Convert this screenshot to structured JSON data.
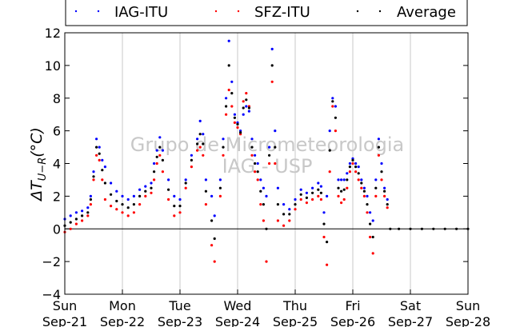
{
  "chart_data": {
    "type": "scatter",
    "ylabel": "ΔT_{U-R}(°C)",
    "ylim": [
      -4,
      12
    ],
    "yticks": [
      -4,
      -2,
      0,
      2,
      4,
      6,
      8,
      10,
      12
    ],
    "xlim": [
      "2014-09-21",
      "2014-09-28"
    ],
    "xticks": [
      {
        "day": "Sun",
        "date": "Sep-21"
      },
      {
        "day": "Mon",
        "date": "Sep-22"
      },
      {
        "day": "Tue",
        "date": "Sep-23"
      },
      {
        "day": "Wed",
        "date": "Sep-24"
      },
      {
        "day": "Thu",
        "date": "Sep-25"
      },
      {
        "day": "Fri",
        "date": "Sep-26"
      },
      {
        "day": "Sat",
        "date": "Sep-27"
      },
      {
        "day": "Sun",
        "date": "Sep-28"
      }
    ],
    "grid": "vertical",
    "legend_position": "top",
    "watermark": {
      "line1": "Grupo de Micrometeorologia",
      "line2": "IAG - USP"
    },
    "series": [
      {
        "name": "IAG-ITU",
        "color": "#0000ff",
        "points": [
          [
            0.0,
            0.6
          ],
          [
            0.1,
            0.8
          ],
          [
            0.2,
            1.0
          ],
          [
            0.3,
            1.1
          ],
          [
            0.4,
            1.3
          ],
          [
            0.45,
            2.0
          ],
          [
            0.5,
            3.5
          ],
          [
            0.55,
            5.5
          ],
          [
            0.6,
            5.0
          ],
          [
            0.65,
            4.2
          ],
          [
            0.7,
            3.8
          ],
          [
            0.8,
            2.8
          ],
          [
            0.9,
            2.3
          ],
          [
            1.0,
            2.0
          ],
          [
            1.1,
            1.8
          ],
          [
            1.2,
            2.0
          ],
          [
            1.3,
            2.4
          ],
          [
            1.4,
            2.6
          ],
          [
            1.5,
            2.8
          ],
          [
            1.55,
            4.0
          ],
          [
            1.6,
            4.8
          ],
          [
            1.65,
            5.6
          ],
          [
            1.7,
            4.8
          ],
          [
            1.8,
            3.0
          ],
          [
            1.9,
            2.0
          ],
          [
            2.0,
            1.8
          ],
          [
            2.1,
            3.0
          ],
          [
            2.2,
            4.5
          ],
          [
            2.3,
            5.5
          ],
          [
            2.35,
            6.6
          ],
          [
            2.4,
            5.8
          ],
          [
            2.45,
            3.0
          ],
          [
            2.55,
            2.0
          ],
          [
            2.6,
            0.8
          ],
          [
            2.7,
            3.0
          ],
          [
            2.75,
            5.5
          ],
          [
            2.8,
            8.0
          ],
          [
            2.85,
            11.5
          ],
          [
            2.9,
            9.0
          ],
          [
            2.95,
            7.0
          ],
          [
            3.0,
            6.5
          ],
          [
            3.05,
            6.0
          ],
          [
            3.1,
            7.0
          ],
          [
            3.15,
            7.5
          ],
          [
            3.2,
            7.2
          ],
          [
            3.25,
            5.5
          ],
          [
            3.3,
            4.5
          ],
          [
            3.35,
            4.0
          ],
          [
            3.4,
            3.0
          ],
          [
            3.45,
            2.5
          ],
          [
            3.5,
            2.0
          ],
          [
            3.55,
            5.0
          ],
          [
            3.6,
            11.0
          ],
          [
            3.65,
            6.0
          ],
          [
            3.7,
            2.5
          ],
          [
            3.8,
            1.5
          ],
          [
            3.9,
            1.2
          ],
          [
            4.0,
            1.8
          ],
          [
            4.1,
            2.4
          ],
          [
            4.2,
            2.2
          ],
          [
            4.3,
            2.5
          ],
          [
            4.4,
            2.8
          ],
          [
            4.45,
            2.6
          ],
          [
            4.5,
            1.0
          ],
          [
            4.55,
            2.0
          ],
          [
            4.6,
            6.0
          ],
          [
            4.65,
            8.0
          ],
          [
            4.7,
            7.5
          ],
          [
            4.75,
            3.0
          ],
          [
            4.8,
            3.0
          ],
          [
            4.85,
            3.0
          ],
          [
            4.9,
            3.4
          ],
          [
            4.95,
            4.0
          ],
          [
            5.0,
            4.3
          ],
          [
            5.05,
            4.0
          ],
          [
            5.1,
            3.8
          ],
          [
            5.15,
            3.0
          ],
          [
            5.2,
            2.5
          ],
          [
            5.25,
            2.0
          ],
          [
            5.3,
            1.0
          ],
          [
            5.35,
            0.5
          ],
          [
            5.4,
            3.0
          ],
          [
            5.45,
            5.5
          ],
          [
            5.5,
            4.0
          ],
          [
            5.55,
            2.5
          ],
          [
            5.6,
            1.8
          ]
        ]
      },
      {
        "name": "SFZ-ITU",
        "color": "#ff0000",
        "points": [
          [
            0.0,
            -0.2
          ],
          [
            0.1,
            0.0
          ],
          [
            0.2,
            0.3
          ],
          [
            0.3,
            0.5
          ],
          [
            0.4,
            0.8
          ],
          [
            0.45,
            1.5
          ],
          [
            0.5,
            3.0
          ],
          [
            0.55,
            4.5
          ],
          [
            0.6,
            4.2
          ],
          [
            0.65,
            3.0
          ],
          [
            0.7,
            1.8
          ],
          [
            0.8,
            1.4
          ],
          [
            0.9,
            1.2
          ],
          [
            1.0,
            1.0
          ],
          [
            1.1,
            0.8
          ],
          [
            1.2,
            1.0
          ],
          [
            1.3,
            1.5
          ],
          [
            1.4,
            2.0
          ],
          [
            1.5,
            2.2
          ],
          [
            1.55,
            3.0
          ],
          [
            1.6,
            4.0
          ],
          [
            1.65,
            4.5
          ],
          [
            1.7,
            3.5
          ],
          [
            1.8,
            1.8
          ],
          [
            1.9,
            0.8
          ],
          [
            2.0,
            1.0
          ],
          [
            2.1,
            2.5
          ],
          [
            2.2,
            3.8
          ],
          [
            2.3,
            4.8
          ],
          [
            2.35,
            5.0
          ],
          [
            2.4,
            4.5
          ],
          [
            2.45,
            1.5
          ],
          [
            2.55,
            -1.0
          ],
          [
            2.6,
            -2.0
          ],
          [
            2.7,
            2.0
          ],
          [
            2.75,
            4.5
          ],
          [
            2.8,
            7.0
          ],
          [
            2.85,
            8.5
          ],
          [
            2.9,
            7.5
          ],
          [
            2.95,
            6.5
          ],
          [
            3.0,
            6.2
          ],
          [
            3.05,
            5.8
          ],
          [
            3.1,
            7.8
          ],
          [
            3.15,
            8.3
          ],
          [
            3.2,
            7.5
          ],
          [
            3.25,
            4.5
          ],
          [
            3.3,
            3.5
          ],
          [
            3.35,
            3.0
          ],
          [
            3.4,
            1.5
          ],
          [
            3.45,
            0.5
          ],
          [
            3.5,
            -2.0
          ],
          [
            3.55,
            4.0
          ],
          [
            3.6,
            9.0
          ],
          [
            3.65,
            4.0
          ],
          [
            3.7,
            0.5
          ],
          [
            3.8,
            0.2
          ],
          [
            3.9,
            0.5
          ],
          [
            4.0,
            1.2
          ],
          [
            4.1,
            1.8
          ],
          [
            4.2,
            1.6
          ],
          [
            4.3,
            1.8
          ],
          [
            4.4,
            2.0
          ],
          [
            4.45,
            1.8
          ],
          [
            4.5,
            -0.5
          ],
          [
            4.55,
            -2.2
          ],
          [
            4.6,
            3.5
          ],
          [
            4.65,
            7.5
          ],
          [
            4.7,
            6.0
          ],
          [
            4.75,
            2.0
          ],
          [
            4.8,
            1.6
          ],
          [
            4.85,
            1.8
          ],
          [
            4.9,
            2.5
          ],
          [
            4.95,
            3.5
          ],
          [
            5.0,
            4.0
          ],
          [
            5.05,
            3.5
          ],
          [
            5.1,
            3.0
          ],
          [
            5.15,
            2.5
          ],
          [
            5.2,
            2.0
          ],
          [
            5.25,
            1.0
          ],
          [
            5.3,
            -0.5
          ],
          [
            5.35,
            -1.5
          ],
          [
            5.4,
            2.0
          ],
          [
            5.45,
            4.5
          ],
          [
            5.5,
            3.0
          ],
          [
            5.55,
            2.0
          ],
          [
            5.6,
            1.3
          ]
        ]
      },
      {
        "name": "Average",
        "color": "#000000",
        "points": [
          [
            0.0,
            0.2
          ],
          [
            0.1,
            0.4
          ],
          [
            0.2,
            0.6
          ],
          [
            0.3,
            0.8
          ],
          [
            0.4,
            1.0
          ],
          [
            0.45,
            1.8
          ],
          [
            0.5,
            3.2
          ],
          [
            0.55,
            5.0
          ],
          [
            0.6,
            4.6
          ],
          [
            0.65,
            3.6
          ],
          [
            0.7,
            2.8
          ],
          [
            0.8,
            2.1
          ],
          [
            0.9,
            1.7
          ],
          [
            1.0,
            1.5
          ],
          [
            1.1,
            1.3
          ],
          [
            1.2,
            1.5
          ],
          [
            1.3,
            2.0
          ],
          [
            1.4,
            2.3
          ],
          [
            1.5,
            2.5
          ],
          [
            1.55,
            3.5
          ],
          [
            1.6,
            4.4
          ],
          [
            1.65,
            5.0
          ],
          [
            1.7,
            4.2
          ],
          [
            1.8,
            2.4
          ],
          [
            1.9,
            1.4
          ],
          [
            2.0,
            1.4
          ],
          [
            2.1,
            2.8
          ],
          [
            2.2,
            4.2
          ],
          [
            2.3,
            5.2
          ],
          [
            2.35,
            5.8
          ],
          [
            2.4,
            5.2
          ],
          [
            2.45,
            2.3
          ],
          [
            2.55,
            0.5
          ],
          [
            2.6,
            -0.6
          ],
          [
            2.7,
            2.5
          ],
          [
            2.75,
            5.0
          ],
          [
            2.8,
            7.5
          ],
          [
            2.85,
            10.0
          ],
          [
            2.9,
            8.3
          ],
          [
            2.95,
            6.8
          ],
          [
            3.0,
            6.4
          ],
          [
            3.05,
            5.9
          ],
          [
            3.1,
            7.4
          ],
          [
            3.15,
            7.9
          ],
          [
            3.2,
            7.4
          ],
          [
            3.25,
            5.0
          ],
          [
            3.3,
            4.0
          ],
          [
            3.35,
            3.5
          ],
          [
            3.4,
            2.3
          ],
          [
            3.45,
            1.5
          ],
          [
            3.5,
            0.0
          ],
          [
            3.55,
            4.5
          ],
          [
            3.6,
            10.0
          ],
          [
            3.65,
            5.0
          ],
          [
            3.7,
            1.5
          ],
          [
            3.8,
            0.9
          ],
          [
            3.9,
            0.9
          ],
          [
            4.0,
            1.5
          ],
          [
            4.1,
            2.1
          ],
          [
            4.2,
            1.9
          ],
          [
            4.3,
            2.2
          ],
          [
            4.4,
            2.4
          ],
          [
            4.45,
            2.2
          ],
          [
            4.5,
            0.3
          ],
          [
            4.55,
            -0.8
          ],
          [
            4.6,
            4.8
          ],
          [
            4.65,
            7.8
          ],
          [
            4.7,
            6.8
          ],
          [
            4.75,
            2.5
          ],
          [
            4.8,
            2.3
          ],
          [
            4.85,
            2.4
          ],
          [
            4.9,
            3.0
          ],
          [
            4.95,
            3.8
          ],
          [
            5.0,
            4.2
          ],
          [
            5.05,
            3.8
          ],
          [
            5.1,
            3.4
          ],
          [
            5.15,
            2.8
          ],
          [
            5.2,
            2.3
          ],
          [
            5.25,
            1.5
          ],
          [
            5.3,
            0.3
          ],
          [
            5.35,
            -0.5
          ],
          [
            5.4,
            2.5
          ],
          [
            5.45,
            5.0
          ],
          [
            5.5,
            3.5
          ],
          [
            5.55,
            2.3
          ],
          [
            5.6,
            1.5
          ],
          [
            5.65,
            0.0
          ],
          [
            5.8,
            0.0
          ],
          [
            6.0,
            0.0
          ],
          [
            6.2,
            0.0
          ],
          [
            6.4,
            0.0
          ],
          [
            6.6,
            0.0
          ],
          [
            6.8,
            0.0
          ],
          [
            7.0,
            0.0
          ]
        ]
      }
    ]
  }
}
